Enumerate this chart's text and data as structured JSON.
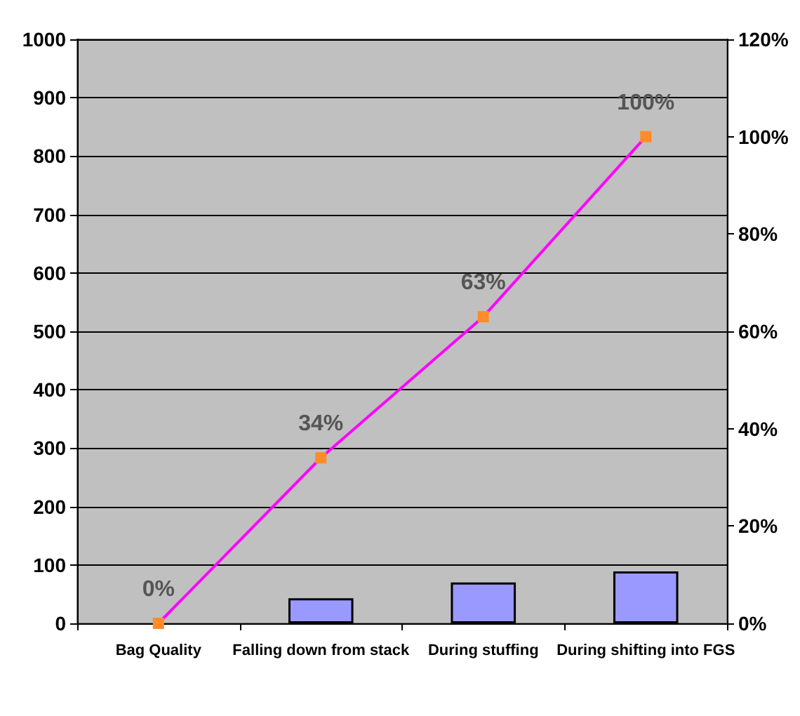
{
  "chart_data": {
    "type": "bar",
    "categories": [
      "Bag Quality",
      "Falling down from stack",
      "During stuffing",
      "During shifting into FGS"
    ],
    "series": [
      {
        "color": "#9999ff",
        "values": [
          0,
          43,
          70,
          89
        ]
      },
      {
        "type": "line",
        "axis": "y2",
        "color": "#ff00ff",
        "marker": "square",
        "values": [
          0,
          34,
          63,
          100
        ],
        "value_labels": [
          "0%",
          "34%",
          "63%",
          "100%"
        ]
      }
    ],
    "ylim": [
      0,
      1000
    ],
    "yticks": [
      0,
      100,
      200,
      300,
      400,
      500,
      600,
      700,
      800,
      900,
      1000
    ],
    "y2lim": [
      0,
      120
    ],
    "y2ticks": [
      {
        "value": 0,
        "label": "0%"
      },
      {
        "value": 20,
        "label": "20%"
      },
      {
        "value": 40,
        "label": "40%"
      },
      {
        "value": 60,
        "label": "60%"
      },
      {
        "value": 80,
        "label": "80%"
      },
      {
        "value": 100,
        "label": "100%"
      },
      {
        "value": 120,
        "label": "120%"
      }
    ],
    "grid": "y"
  }
}
